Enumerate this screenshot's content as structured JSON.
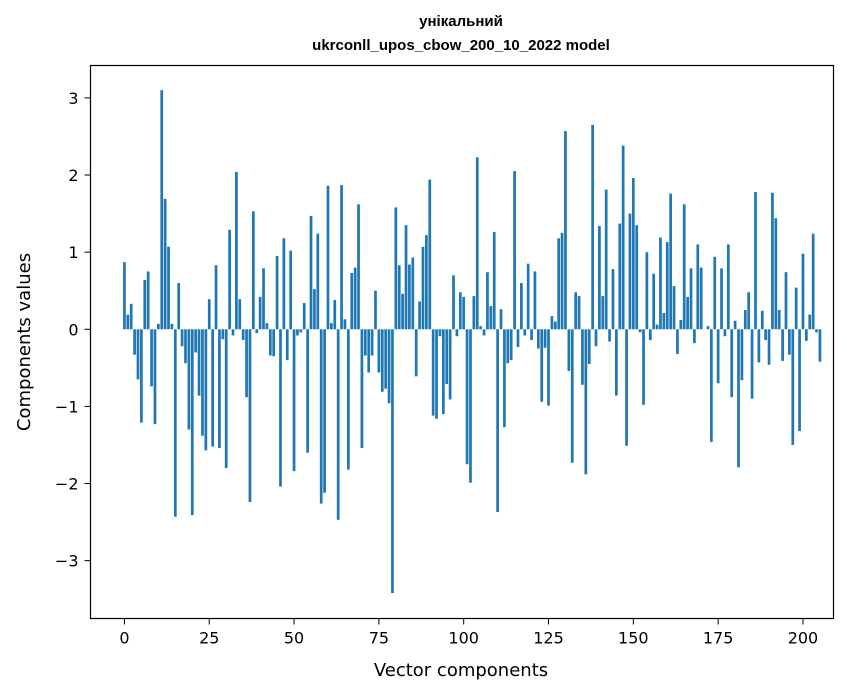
{
  "chart_data": {
    "type": "bar",
    "title_line1": "унікальний",
    "title_line2": "ukrconll_upos_cbow_200_10_2022 model",
    "xlabel": "Vector components",
    "ylabel": "Components values",
    "xlim": [
      -10,
      209
    ],
    "ylim": [
      -3.75,
      3.42
    ],
    "xticks": [
      0,
      25,
      50,
      75,
      100,
      125,
      150,
      175,
      200
    ],
    "yticks": [
      -3,
      -2,
      -1,
      0,
      1,
      2,
      3
    ],
    "xtick_labels": [
      "0",
      "25",
      "50",
      "75",
      "100",
      "125",
      "150",
      "175",
      "200"
    ],
    "ytick_labels": [
      "−3",
      "−2",
      "−1",
      "0",
      "1",
      "2",
      "3"
    ],
    "bar_color": "#1f77b4",
    "grid": false,
    "values": [
      0.87,
      0.19,
      0.33,
      -0.33,
      -0.65,
      -1.21,
      0.64,
      0.75,
      -0.74,
      -1.23,
      0.07,
      3.1,
      1.69,
      1.07,
      0.07,
      -2.43,
      0.6,
      -0.22,
      -0.44,
      -1.3,
      -2.41,
      -0.3,
      -0.86,
      -1.38,
      -1.57,
      0.39,
      -1.52,
      0.83,
      -1.54,
      -0.13,
      -1.8,
      1.29,
      -0.08,
      2.04,
      0.39,
      -0.14,
      -0.88,
      -2.24,
      1.53,
      -0.05,
      0.42,
      0.79,
      0.08,
      -0.34,
      -0.35,
      0.95,
      -2.04,
      1.18,
      -0.4,
      1.02,
      -1.84,
      -0.08,
      -0.04,
      0.34,
      -1.6,
      1.47,
      0.52,
      1.24,
      -2.26,
      -2.12,
      1.86,
      0.08,
      0.38,
      -2.47,
      1.87,
      0.13,
      -1.82,
      0.73,
      0.8,
      1.62,
      -1.54,
      -0.34,
      -0.56,
      -0.34,
      0.5,
      -0.56,
      -0.81,
      -0.77,
      -0.96,
      -3.42,
      1.58,
      0.83,
      0.46,
      1.35,
      0.84,
      0.93,
      -0.61,
      0.36,
      1.07,
      1.22,
      1.94,
      -1.12,
      -1.16,
      -0.09,
      -1.1,
      -0.71,
      -0.91,
      0.7,
      -0.09,
      0.48,
      0.42,
      -1.75,
      -1.99,
      0.43,
      2.23,
      0.04,
      -0.08,
      0.74,
      0.3,
      1.26,
      -2.37,
      0.26,
      -1.27,
      -0.44,
      -0.4,
      2.05,
      -0.23,
      0.6,
      -0.08,
      0.85,
      -0.14,
      0.75,
      -0.25,
      -0.94,
      -0.24,
      -0.99,
      0.17,
      0.1,
      1.18,
      1.25,
      2.57,
      -0.54,
      -1.73,
      0.48,
      0.43,
      -0.72,
      -1.88,
      -0.45,
      2.65,
      -0.22,
      1.34,
      0.43,
      1.81,
      -0.16,
      0.78,
      -0.86,
      1.37,
      2.38,
      -1.51,
      1.5,
      1.96,
      1.35,
      -0.04,
      -0.98,
      1.0,
      -0.14,
      0.72,
      0.06,
      1.19,
      0.21,
      1.13,
      1.76,
      0.56,
      -0.32,
      0.12,
      1.62,
      0.42,
      0.79,
      -0.18,
      1.1,
      0.8,
      0.0,
      0.04,
      -1.46,
      0.94,
      -0.7,
      0.79,
      -0.09,
      1.1,
      -0.88,
      0.11,
      -1.79,
      -0.66,
      0.25,
      0.48,
      -0.9,
      1.78,
      -0.43,
      0.24,
      -0.14,
      -0.46,
      1.77,
      1.44,
      0.25,
      -0.41,
      0.74,
      -0.33,
      -1.5,
      0.54,
      -1.32,
      0.98,
      -0.15,
      0.19,
      1.24,
      -0.04,
      -0.42
    ]
  }
}
